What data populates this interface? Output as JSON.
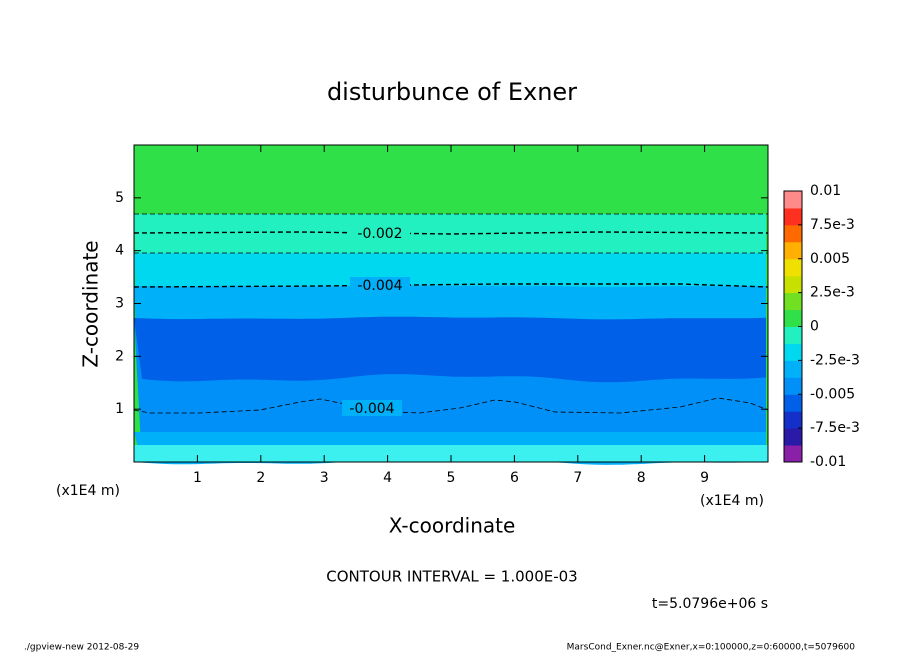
{
  "chart_data": {
    "type": "contour",
    "title": "disturbunce of Exner",
    "x_label": "X-coordinate",
    "y_label": "Z-coordinate",
    "x_unit": "(x1E4 m)",
    "x_unit_right": "(x1E4 m)",
    "xlim": [
      0,
      10
    ],
    "xticks": [
      1,
      2,
      3,
      4,
      5,
      6,
      7,
      8,
      9
    ],
    "ylim": [
      0,
      6
    ],
    "yticks": [
      1,
      2,
      3,
      4,
      5
    ],
    "colorbar_lim": [
      -0.01,
      0.01
    ],
    "colorbar_ticks": [
      -0.01,
      {
        "value": -0.0075,
        "label": "-7.5e-3"
      },
      -0.005,
      {
        "value": -0.0025,
        "label": "-2.5e-3"
      },
      0,
      {
        "value": 0.0025,
        "label": "2.5e-3"
      },
      0.005,
      {
        "value": 0.0075,
        "label": "7.5e-3"
      },
      0.01
    ],
    "colors": [
      "#8a1fa8",
      "#2a1aa8",
      "#1530c8",
      "#0060e8",
      "#0090f8",
      "#00b0f8",
      "#00d8f0",
      "#22f0c0",
      "#30e048",
      "#70e020",
      "#c8e000",
      "#f0e000",
      "#ffb000",
      "#ff6a00",
      "#ff3020",
      "#ff8a8a"
    ],
    "contour_levels": [
      -0.001,
      -0.002,
      -0.003,
      -0.004,
      -0.004
    ],
    "contour_interval": "CONTOUR INTERVAL = 1.000E-03",
    "time": "t=5.0796e+06 s",
    "footer_left": "./gpview-new  2012-08-29",
    "footer_right": "MarsCond_Exner.nc@Exner,x=0:100000,z=0:60000,t=5079600"
  }
}
